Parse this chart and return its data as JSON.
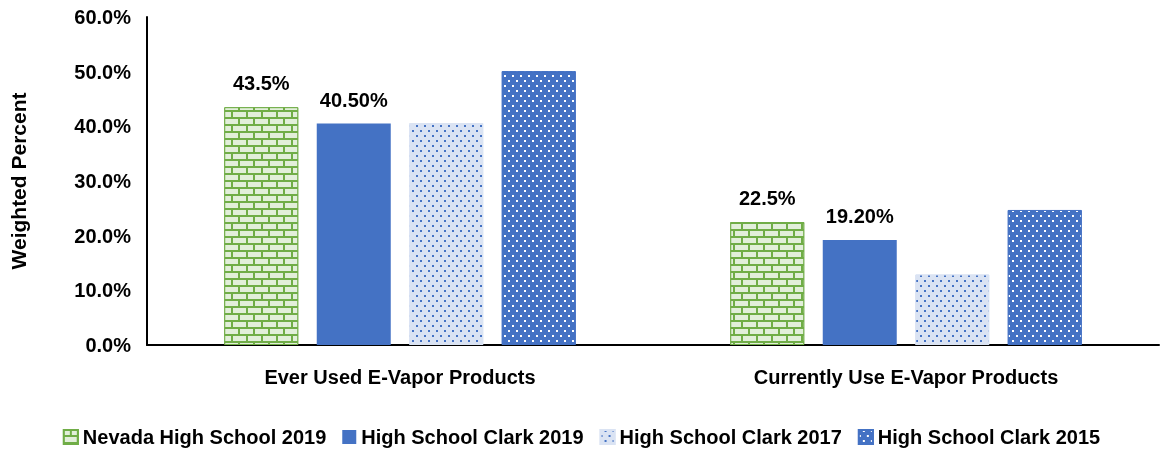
{
  "chart_data": {
    "type": "bar",
    "ylabel": "Weighted Percent",
    "categories": [
      "Ever Used E-Vapor Products",
      "Currently Use E-Vapor Products"
    ],
    "series": [
      {
        "name": "Nevada High School 2019",
        "color": "#70ad47",
        "values": [
          43.5,
          22.5
        ],
        "value_labels": [
          "43.5%",
          "22.5%"
        ]
      },
      {
        "name": "High School Clark 2019",
        "color": "#4472c4",
        "values": [
          40.5,
          19.2
        ],
        "value_labels": [
          "40.50%",
          "19.20%"
        ]
      },
      {
        "name": "High School Clark 2017",
        "color": "#dae3f3",
        "values": [
          40.6,
          12.9
        ]
      },
      {
        "name": "High School Clark 2015",
        "color": "#4472c4",
        "values": [
          50.1,
          24.7
        ]
      }
    ],
    "ylim": [
      0,
      60
    ],
    "yticks": [
      {
        "value": 0,
        "label": "0.0%"
      },
      {
        "value": 10,
        "label": "10.0%"
      },
      {
        "value": 20,
        "label": "20.0%"
      },
      {
        "value": 30,
        "label": "30.0%"
      },
      {
        "value": 40,
        "label": "40.0%"
      },
      {
        "value": 50,
        "label": "50.0%"
      },
      {
        "value": 60,
        "label": "60.0%"
      }
    ],
    "grid": false,
    "legend": "bottom"
  }
}
